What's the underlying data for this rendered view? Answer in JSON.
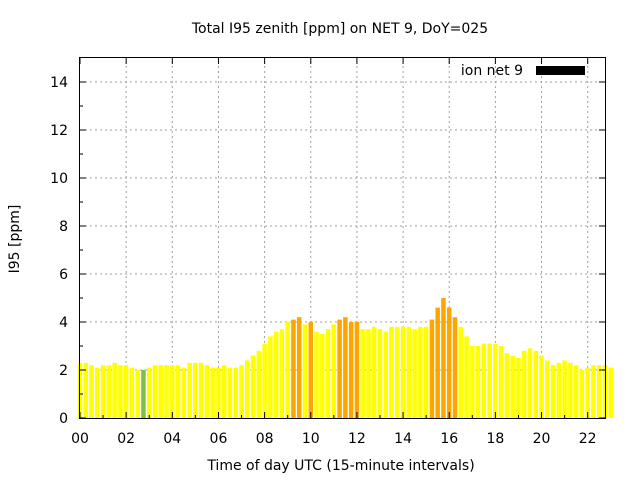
{
  "chart_data": {
    "type": "bar",
    "title": "Total I95 zenith [ppm] on NET 9, DoY=025",
    "xlabel": "Time of day UTC (15-minute intervals)",
    "ylabel": "I95 [ppm]",
    "xlim": [
      0,
      22.75
    ],
    "ylim": [
      0,
      15
    ],
    "x_ticks": [
      "00",
      "02",
      "04",
      "06",
      "08",
      "10",
      "12",
      "14",
      "16",
      "18",
      "20",
      "22"
    ],
    "y_ticks": [
      "0",
      "2",
      "4",
      "6",
      "8",
      "10",
      "12",
      "14"
    ],
    "grid": true,
    "legend": {
      "placement": "top-right",
      "label": "ion net 9",
      "color": "#000000"
    },
    "bar_interval_hours": 0.25,
    "colors": {
      "low": "#ffff00",
      "mid": "#ffa500",
      "special": "#80c040"
    },
    "series": [
      {
        "name": "ion net 9",
        "values": [
          2.3,
          2.3,
          2.2,
          2.1,
          2.2,
          2.2,
          2.3,
          2.2,
          2.2,
          2.1,
          2.0,
          2.0,
          2.1,
          2.2,
          2.2,
          2.2,
          2.2,
          2.2,
          2.1,
          2.3,
          2.3,
          2.3,
          2.2,
          2.1,
          2.1,
          2.2,
          2.1,
          2.1,
          2.2,
          2.4,
          2.6,
          2.8,
          3.1,
          3.4,
          3.6,
          3.7,
          4.0,
          4.1,
          4.2,
          3.9,
          4.0,
          3.6,
          3.5,
          3.7,
          3.9,
          4.1,
          4.2,
          4.0,
          4.0,
          3.7,
          3.7,
          3.8,
          3.7,
          3.6,
          3.8,
          3.8,
          3.8,
          3.8,
          3.7,
          3.8,
          3.8,
          4.1,
          4.6,
          5.0,
          4.6,
          4.2,
          3.8,
          3.4,
          3.0,
          3.0,
          3.1,
          3.1,
          3.1,
          3.0,
          2.7,
          2.6,
          2.5,
          2.8,
          2.9,
          2.8,
          2.6,
          2.4,
          2.2,
          2.3,
          2.4,
          2.3,
          2.2,
          2.0,
          2.1,
          2.2,
          2.2,
          2.2,
          2.1
        ],
        "bar_colors": [
          "low",
          "low",
          "low",
          "low",
          "low",
          "low",
          "low",
          "low",
          "low",
          "low",
          "low",
          "special",
          "low",
          "low",
          "low",
          "low",
          "low",
          "low",
          "low",
          "low",
          "low",
          "low",
          "low",
          "low",
          "low",
          "low",
          "low",
          "low",
          "low",
          "low",
          "low",
          "low",
          "low",
          "low",
          "low",
          "low",
          "low",
          "mid",
          "mid",
          "low",
          "mid",
          "low",
          "low",
          "low",
          "low",
          "mid",
          "mid",
          "mid",
          "mid",
          "low",
          "low",
          "low",
          "low",
          "low",
          "low",
          "low",
          "low",
          "low",
          "low",
          "low",
          "low",
          "mid",
          "mid",
          "mid",
          "mid",
          "mid",
          "low",
          "low",
          "low",
          "low",
          "low",
          "low",
          "low",
          "low",
          "low",
          "low",
          "low",
          "low",
          "low",
          "low",
          "low",
          "low",
          "low",
          "low",
          "low",
          "low",
          "low",
          "low",
          "low",
          "low",
          "low",
          "low",
          "low"
        ]
      }
    ]
  }
}
